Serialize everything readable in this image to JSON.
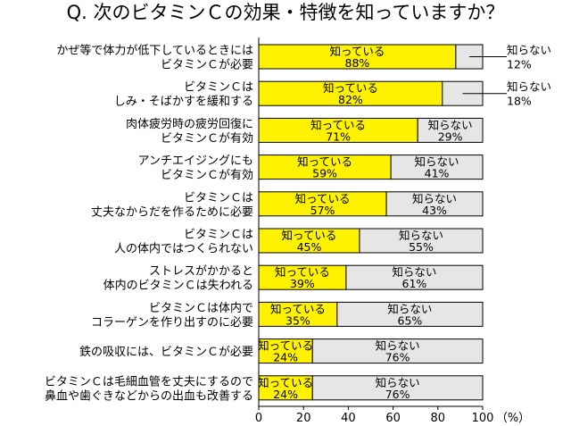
{
  "title": "Q. 次のビタミンＣの効果・特徴を知っていますか？",
  "colors": {
    "known": "#FFF200",
    "unknown": "#E6E6E6",
    "border": "#000000"
  },
  "chart_data": {
    "type": "bar",
    "orientation": "horizontal",
    "stacked": true,
    "categories": [
      [
        "かぜ等で体力が低下しているときには",
        "ビタミンＣが必要"
      ],
      [
        "ビタミンＣは",
        "しみ・そばかすを緩和する"
      ],
      [
        "肉体疲労時の疲労回復に",
        "ビタミンＣが有効"
      ],
      [
        "アンチエイジングにも",
        "ビタミンＣが有効"
      ],
      [
        "ビタミンＣは",
        "丈夫なからだを作るために必要"
      ],
      [
        "ビタミンＣは",
        "人の体内ではつくられない"
      ],
      [
        "ストレスがかかると",
        "体内のビタミンＣは失われる"
      ],
      [
        "ビタミンＣは体内で",
        "コラーゲンを作り出すのに必要"
      ],
      [
        "鉄の吸収には、ビタミンＣが必要"
      ],
      [
        "ビタミンＣは毛細血管を丈夫にするので",
        "鼻血や歯ぐきなどからの出血も改善する"
      ]
    ],
    "series": [
      {
        "name": "知っている",
        "values": [
          88,
          82,
          71,
          59,
          57,
          45,
          39,
          35,
          24,
          24
        ]
      },
      {
        "name": "知らない",
        "values": [
          12,
          18,
          29,
          41,
          43,
          55,
          61,
          65,
          76,
          76
        ]
      }
    ],
    "xlim": [
      0,
      100
    ],
    "xticks": [
      "0",
      "20",
      "40",
      "60",
      "80",
      "100"
    ],
    "xunit": "（%）",
    "value_suffix": "%",
    "outside_labels": [
      0,
      1
    ]
  }
}
